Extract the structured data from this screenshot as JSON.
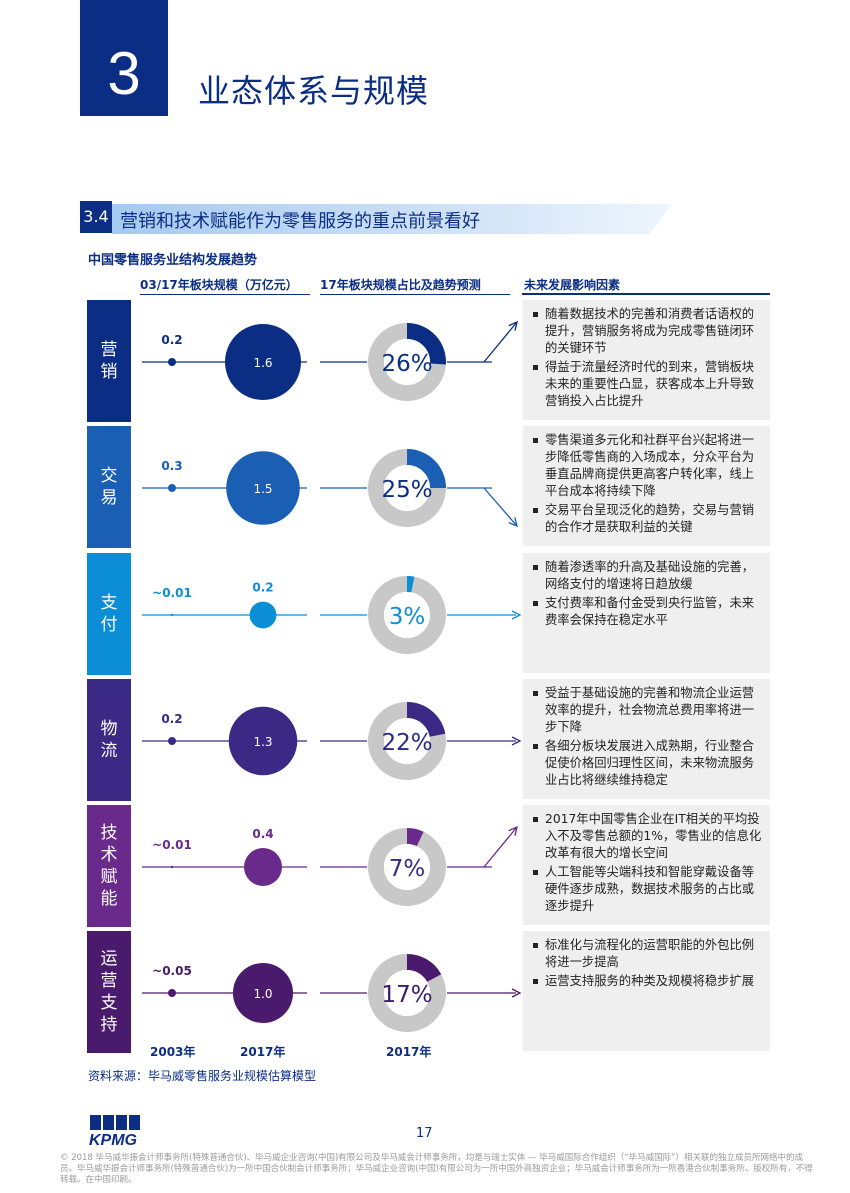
{
  "chapter": {
    "number": "3",
    "title": "业态体系与规模"
  },
  "section": {
    "number": "3.4",
    "title": "营销和技术赋能作为零售服务的重点前景看好"
  },
  "subtitle": "中国零售服务业结构发展趋势",
  "columns": {
    "scale": "03/17年板块规模（万亿元）",
    "share": "17年板块规模占比及趋势预测",
    "factors": "未来发展影响因素"
  },
  "colors": {
    "navy": "#0b2e84",
    "blue": "#1a5fb4",
    "cyan": "#0b8ed6",
    "purple_dark": "#3a2a86",
    "purple": "#6a2a8c",
    "deep_purple": "#4a1a6c",
    "ring_grey": "#c8c8c8"
  },
  "chart_data": {
    "type": "table",
    "series": [
      {
        "name": "营销",
        "v2003": "0.2",
        "v2017": "1.6",
        "share": "26%",
        "share_value": 26,
        "trend": "up"
      },
      {
        "name": "交易",
        "v2003": "0.3",
        "v2017": "1.5",
        "share": "25%",
        "share_value": 25,
        "trend": "down"
      },
      {
        "name": "支付",
        "v2003": "~0.01",
        "v2017": "0.2",
        "share": "3%",
        "share_value": 3,
        "trend": "flat"
      },
      {
        "name": "物流",
        "v2003": "0.2",
        "v2017": "1.3",
        "share": "22%",
        "share_value": 22,
        "trend": "flat"
      },
      {
        "name": "技术赋能",
        "v2003": "~0.01",
        "v2017": "0.4",
        "share": "7%",
        "share_value": 7,
        "trend": "up"
      },
      {
        "name": "运营支持",
        "v2003": "~0.05",
        "v2017": "1.0",
        "share": "17%",
        "share_value": 17,
        "trend": "flat"
      }
    ]
  },
  "rows": [
    {
      "label": "营销",
      "color": "#0b2e84",
      "bullets": [
        "随着数据技术的完善和消费者话语权的提升，营销服务将成为完成零售链闭环的关键环节",
        "得益于流量经济时代的到来，营销板块未来的重要性凸显，获客成本上升导致营销投入占比提升"
      ]
    },
    {
      "label": "交易",
      "color": "#1a5fb4",
      "bullets": [
        "零售渠道多元化和社群平台兴起将进一步降低零售商的入场成本，分众平台为垂直品牌商提供更高客户转化率，线上平台成本将持续下降",
        "交易平台呈现泛化的趋势，交易与营销的合作才是获取利益的关键"
      ]
    },
    {
      "label": "支付",
      "color": "#0b8ed6",
      "bullets": [
        "随着渗透率的升高及基础设施的完善，网络支付的增速将日趋放缓",
        "支付费率和备付金受到央行监管，未来费率会保持在稳定水平"
      ]
    },
    {
      "label": "物流",
      "color": "#3a2a86",
      "bullets": [
        "受益于基础设施的完善和物流企业运营效率的提升，社会物流总费用率将进一步下降",
        "各细分板块发展进入成熟期，行业整合促使价格回归理性区间，未来物流服务业占比将继续维持稳定"
      ]
    },
    {
      "label": "技术赋能",
      "color": "#6a2a8c",
      "bullets": [
        "2017年中国零售企业在IT相关的平均投入不及零售总额的1%，零售业的信息化改革有很大的增长空间",
        "人工智能等尖端科技和智能穿戴设备等硬件逐步成熟，数据技术服务的占比或逐步提升"
      ]
    },
    {
      "label": "运营支持",
      "color": "#4a1a6c",
      "bullets": [
        "标准化与流程化的运营职能的外包比例将进一步提高",
        "运营支持服务的种类及规模将稳步扩展"
      ]
    }
  ],
  "years": {
    "y2003": "2003年",
    "y2017a": "2017年",
    "y2017b": "2017年"
  },
  "source": "资料来源：毕马威零售服务业规模估算模型",
  "page_number": "17",
  "logo_text": "KPMG",
  "legal": "© 2018 毕马威华振会计师事务所(特殊普通合伙)、毕马威企业咨询(中国)有限公司及毕马威会计师事务所，均是与瑞士实体 — 毕马威国际合作组织（“毕马威国际”）相关联的独立成员所网络中的成员。毕马威华振会计师事务所(特殊普通合伙)为一所中国合伙制会计师事务所；毕马威企业咨询(中国)有限公司为一所中国外商独资企业；毕马威会计师事务所为一所香港合伙制事务所。版权所有，不得转载。在中国印刷。"
}
